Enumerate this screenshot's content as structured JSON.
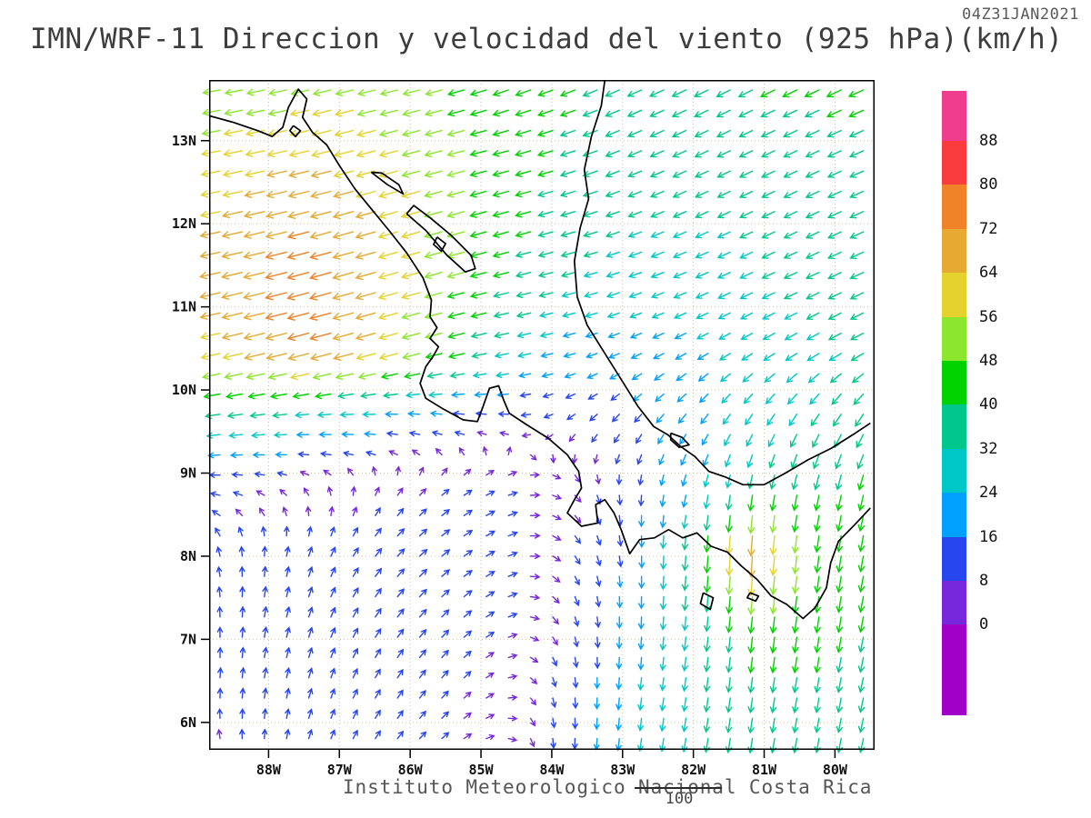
{
  "title": "IMN/WRF-11 Direccion y velocidad del viento (925 hPa)(km/h)",
  "timestamp": "04Z31JAN2021",
  "footer": "Instituto Meteorologico Nacional Costa Rica",
  "page_indicator": "100",
  "chart_data": {
    "type": "quiver",
    "model": "IMN/WRF-11",
    "variable": "Direccion y velocidad del viento",
    "level": "925 hPa",
    "units": "km/h",
    "valid_time": "04Z31JAN2021",
    "axes": {
      "lon_min": -88.84,
      "lon_max": -79.44,
      "lat_min": 5.67,
      "lat_max": 13.73,
      "lat_ticks": [
        {
          "value": 13,
          "label": "13N"
        },
        {
          "value": 12,
          "label": "12N"
        },
        {
          "value": 11,
          "label": "11N"
        },
        {
          "value": 10,
          "label": "10N"
        },
        {
          "value": 9,
          "label": "9N"
        },
        {
          "value": 8,
          "label": "8N"
        },
        {
          "value": 7,
          "label": "7N"
        },
        {
          "value": 6,
          "label": "6N"
        }
      ],
      "lon_ticks": [
        {
          "value": -88,
          "label": "88W"
        },
        {
          "value": -87,
          "label": "87W"
        },
        {
          "value": -86,
          "label": "86W"
        },
        {
          "value": -85,
          "label": "85W"
        },
        {
          "value": -84,
          "label": "84W"
        },
        {
          "value": -83,
          "label": "83W"
        },
        {
          "value": -82,
          "label": "82W"
        },
        {
          "value": -81,
          "label": "81W"
        },
        {
          "value": -80,
          "label": "80W"
        }
      ]
    },
    "speed_scale": {
      "unit": "km/h",
      "levels": [
        0,
        8,
        16,
        24,
        32,
        40,
        48,
        56,
        64,
        72,
        80,
        88
      ],
      "colors": [
        "#a000c8",
        "#7828dc",
        "#2846f0",
        "#00a0ff",
        "#00c8c8",
        "#00c88c",
        "#00d200",
        "#8ce62d",
        "#e6d22d",
        "#e6aa32",
        "#f08228",
        "#fa3c3c",
        "#f03c8c"
      ]
    },
    "wind_grid": {
      "comment": "u eastward, v northward, km/h; rows north to south",
      "lon_start": -89.0,
      "lon_end": -79.5,
      "lat_start": 13.7,
      "lat_end": 5.7,
      "nx": 12,
      "ny": 11,
      "u": [
        [
          -48,
          -50,
          -52,
          -50,
          -46,
          -42,
          -38,
          -36,
          -36,
          -36,
          -38,
          -40
        ],
        [
          -55,
          -58,
          -62,
          -57,
          -50,
          -43,
          -38,
          -34,
          -32,
          -31,
          -32,
          -34
        ],
        [
          -60,
          -66,
          -70,
          -62,
          -52,
          -43,
          -36,
          -31,
          -29,
          -29,
          -31,
          -33
        ],
        [
          -64,
          -70,
          -74,
          -63,
          -51,
          -40,
          -31,
          -27,
          -27,
          -28,
          -30,
          -32
        ],
        [
          -58,
          -66,
          -72,
          -61,
          -47,
          -33,
          -21,
          -17,
          -19,
          -22,
          -26,
          -30
        ],
        [
          -38,
          -34,
          -29,
          -24,
          -18,
          -11,
          -7,
          -9,
          -13,
          -15,
          -18,
          -20
        ],
        [
          -14,
          -9,
          -4,
          2,
          6,
          8,
          5,
          0,
          -5,
          -6,
          -8,
          -10
        ],
        [
          -4,
          0,
          4,
          8,
          10,
          10,
          6,
          2,
          -3,
          -5,
          -6,
          -8
        ],
        [
          -2,
          2,
          5,
          8,
          9,
          8,
          4,
          0,
          -3,
          -5,
          -6,
          -8
        ],
        [
          0,
          2,
          4,
          6,
          7,
          5,
          2,
          -2,
          -4,
          -5,
          -6,
          -8
        ],
        [
          -2,
          0,
          3,
          5,
          6,
          4,
          0,
          -3,
          -5,
          -6,
          -6,
          -7
        ]
      ],
      "v": [
        [
          -8,
          -10,
          -12,
          -12,
          -12,
          -14,
          -15,
          -16,
          -17,
          -18,
          -18,
          -18
        ],
        [
          -10,
          -12,
          -15,
          -15,
          -13,
          -11,
          -12,
          -14,
          -15,
          -15,
          -15,
          -15
        ],
        [
          -12,
          -15,
          -18,
          -18,
          -15,
          -12,
          -10,
          -11,
          -13,
          -14,
          -15,
          -15
        ],
        [
          -14,
          -17,
          -20,
          -18,
          -14,
          -10,
          -8,
          -9,
          -11,
          -13,
          -14,
          -15
        ],
        [
          -13,
          -16,
          -19,
          -17,
          -12,
          -7,
          -5,
          -7,
          -10,
          -13,
          -15,
          -16
        ],
        [
          -6,
          -4,
          -2,
          0,
          2,
          1,
          -4,
          -10,
          -16,
          -22,
          -27,
          -30
        ],
        [
          0,
          2,
          4,
          5,
          5,
          3,
          -3,
          -10,
          -20,
          -32,
          -38,
          -40
        ],
        [
          8,
          10,
          10,
          9,
          8,
          5,
          -6,
          -16,
          -36,
          -75,
          -48,
          -42
        ],
        [
          12,
          14,
          13,
          11,
          9,
          4,
          -8,
          -20,
          -31,
          -46,
          -44,
          -40
        ],
        [
          12,
          13,
          12,
          10,
          8,
          2,
          -11,
          -22,
          -30,
          -38,
          -38,
          -36
        ],
        [
          6,
          8,
          8,
          7,
          5,
          0,
          -13,
          -24,
          -30,
          -36,
          -34,
          -33
        ]
      ]
    }
  },
  "map": {
    "coastlines": [
      {
        "name": "pacific-coast",
        "points": [
          [
            -88.84,
            13.3
          ],
          [
            -88.5,
            13.22
          ],
          [
            -88.15,
            13.12
          ],
          [
            -87.95,
            13.05
          ],
          [
            -87.8,
            13.16
          ],
          [
            -87.72,
            13.4
          ],
          [
            -87.58,
            13.62
          ],
          [
            -87.46,
            13.5
          ],
          [
            -87.52,
            13.28
          ],
          [
            -87.38,
            13.1
          ],
          [
            -87.18,
            12.95
          ],
          [
            -87.0,
            12.7
          ],
          [
            -86.78,
            12.42
          ],
          [
            -86.55,
            12.18
          ],
          [
            -86.3,
            11.92
          ],
          [
            -86.05,
            11.65
          ],
          [
            -85.82,
            11.35
          ],
          [
            -85.7,
            11.08
          ],
          [
            -85.72,
            10.88
          ],
          [
            -85.62,
            10.75
          ],
          [
            -85.72,
            10.62
          ],
          [
            -85.6,
            10.52
          ],
          [
            -85.68,
            10.4
          ],
          [
            -85.78,
            10.28
          ],
          [
            -85.86,
            10.08
          ],
          [
            -85.78,
            9.9
          ],
          [
            -85.55,
            9.78
          ],
          [
            -85.25,
            9.64
          ],
          [
            -85.05,
            9.62
          ],
          [
            -84.98,
            9.78
          ],
          [
            -84.88,
            10.02
          ],
          [
            -84.75,
            10.05
          ],
          [
            -84.68,
            9.88
          ],
          [
            -84.6,
            9.72
          ],
          [
            -84.35,
            9.58
          ],
          [
            -84.05,
            9.42
          ],
          [
            -83.78,
            9.22
          ],
          [
            -83.62,
            9.02
          ],
          [
            -83.58,
            8.82
          ],
          [
            -83.68,
            8.68
          ],
          [
            -83.78,
            8.52
          ],
          [
            -83.58,
            8.36
          ],
          [
            -83.35,
            8.4
          ],
          [
            -83.38,
            8.62
          ],
          [
            -83.25,
            8.68
          ],
          [
            -83.12,
            8.52
          ],
          [
            -83.02,
            8.32
          ],
          [
            -82.9,
            8.03
          ],
          [
            -82.76,
            8.2
          ],
          [
            -82.55,
            8.22
          ],
          [
            -82.35,
            8.32
          ],
          [
            -82.15,
            8.22
          ],
          [
            -81.95,
            8.28
          ],
          [
            -81.75,
            8.12
          ],
          [
            -81.52,
            8.05
          ],
          [
            -81.32,
            7.88
          ],
          [
            -81.1,
            7.72
          ],
          [
            -80.9,
            7.52
          ],
          [
            -80.68,
            7.42
          ],
          [
            -80.45,
            7.25
          ],
          [
            -80.28,
            7.38
          ],
          [
            -80.12,
            7.62
          ],
          [
            -80.06,
            7.92
          ],
          [
            -79.95,
            8.18
          ],
          [
            -79.72,
            8.38
          ],
          [
            -79.5,
            8.58
          ]
        ]
      },
      {
        "name": "caribbean-coast",
        "points": [
          [
            -83.25,
            13.73
          ],
          [
            -83.3,
            13.42
          ],
          [
            -83.44,
            13.05
          ],
          [
            -83.54,
            12.65
          ],
          [
            -83.48,
            12.3
          ],
          [
            -83.6,
            11.95
          ],
          [
            -83.68,
            11.55
          ],
          [
            -83.64,
            11.12
          ],
          [
            -83.5,
            10.78
          ],
          [
            -83.28,
            10.48
          ],
          [
            -83.0,
            10.1
          ],
          [
            -82.78,
            9.8
          ],
          [
            -82.56,
            9.56
          ],
          [
            -82.36,
            9.46
          ],
          [
            -82.18,
            9.32
          ],
          [
            -81.98,
            9.2
          ],
          [
            -81.78,
            9.02
          ],
          [
            -81.54,
            8.95
          ],
          [
            -81.3,
            8.86
          ],
          [
            -81.0,
            8.86
          ],
          [
            -80.7,
            9.0
          ],
          [
            -80.38,
            9.16
          ],
          [
            -80.05,
            9.3
          ],
          [
            -79.75,
            9.46
          ],
          [
            -79.5,
            9.6
          ]
        ]
      },
      {
        "name": "lake-nicaragua",
        "points": [
          [
            -86.05,
            12.12
          ],
          [
            -85.78,
            11.92
          ],
          [
            -85.48,
            11.62
          ],
          [
            -85.22,
            11.42
          ],
          [
            -85.08,
            11.46
          ],
          [
            -85.14,
            11.62
          ],
          [
            -85.42,
            11.86
          ],
          [
            -85.7,
            12.06
          ],
          [
            -85.95,
            12.22
          ],
          [
            -86.05,
            12.12
          ]
        ]
      },
      {
        "name": "ometepe-island",
        "points": [
          [
            -85.62,
            11.84
          ],
          [
            -85.5,
            11.76
          ],
          [
            -85.56,
            11.67
          ],
          [
            -85.67,
            11.75
          ],
          [
            -85.62,
            11.84
          ]
        ]
      },
      {
        "name": "lake-managua",
        "points": [
          [
            -86.55,
            12.62
          ],
          [
            -86.32,
            12.47
          ],
          [
            -86.1,
            12.36
          ],
          [
            -86.16,
            12.47
          ],
          [
            -86.4,
            12.61
          ],
          [
            -86.55,
            12.62
          ]
        ]
      },
      {
        "name": "fonseca-island",
        "points": [
          [
            -87.65,
            13.18
          ],
          [
            -87.55,
            13.12
          ],
          [
            -87.62,
            13.05
          ],
          [
            -87.7,
            13.12
          ],
          [
            -87.65,
            13.18
          ]
        ]
      },
      {
        "name": "bocas-islands",
        "points": [
          [
            -82.32,
            9.48
          ],
          [
            -82.16,
            9.43
          ],
          [
            -82.06,
            9.34
          ],
          [
            -82.2,
            9.31
          ],
          [
            -82.32,
            9.4
          ],
          [
            -82.32,
            9.48
          ]
        ]
      },
      {
        "name": "coiba-island",
        "points": [
          [
            -81.86,
            7.56
          ],
          [
            -81.72,
            7.5
          ],
          [
            -81.76,
            7.36
          ],
          [
            -81.9,
            7.43
          ],
          [
            -81.86,
            7.56
          ]
        ]
      },
      {
        "name": "cebaco-island",
        "points": [
          [
            -81.2,
            7.56
          ],
          [
            -81.08,
            7.52
          ],
          [
            -81.12,
            7.46
          ],
          [
            -81.24,
            7.5
          ],
          [
            -81.2,
            7.56
          ]
        ]
      }
    ]
  }
}
